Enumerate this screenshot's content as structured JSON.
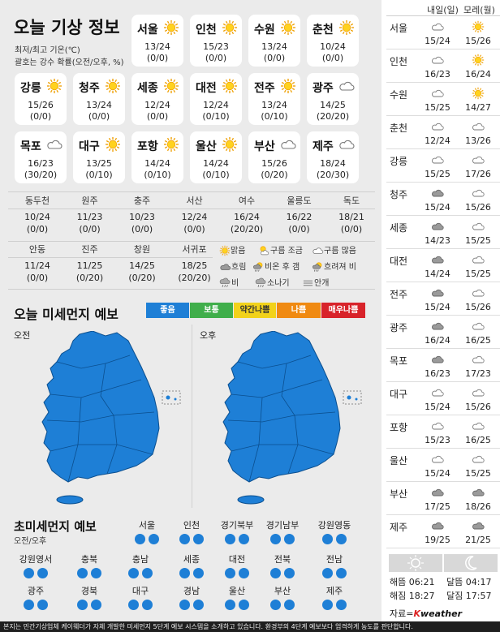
{
  "weather": {
    "title": "오늘 기상 정보",
    "sub1": "최저/최고 기온(℃)",
    "sub2": "괄호는 강수 확률(오전/오후, %)",
    "cards": [
      {
        "name": "서울",
        "icon": "sun-icon",
        "temp": "13/24",
        "prob": "(0/0)"
      },
      {
        "name": "인천",
        "icon": "sun-icon",
        "temp": "15/23",
        "prob": "(0/0)"
      },
      {
        "name": "수원",
        "icon": "sun-icon",
        "temp": "13/24",
        "prob": "(0/0)"
      },
      {
        "name": "춘천",
        "icon": "sun-icon",
        "temp": "10/24",
        "prob": "(0/0)"
      },
      {
        "name": "강릉",
        "icon": "sun-icon",
        "temp": "15/26",
        "prob": "(0/0)"
      },
      {
        "name": "청주",
        "icon": "sun-icon",
        "temp": "13/24",
        "prob": "(0/0)"
      },
      {
        "name": "세종",
        "icon": "sun-icon",
        "temp": "12/24",
        "prob": "(0/0)"
      },
      {
        "name": "대전",
        "icon": "sun-icon",
        "temp": "12/24",
        "prob": "(0/10)"
      },
      {
        "name": "전주",
        "icon": "sun-icon",
        "temp": "13/24",
        "prob": "(0/10)"
      },
      {
        "name": "광주",
        "icon": "cloud-icon",
        "temp": "14/25",
        "prob": "(20/20)"
      },
      {
        "name": "목포",
        "icon": "cloud-icon",
        "temp": "16/23",
        "prob": "(30/20)"
      },
      {
        "name": "대구",
        "icon": "sun-icon",
        "temp": "13/25",
        "prob": "(0/10)"
      },
      {
        "name": "포항",
        "icon": "sun-icon",
        "temp": "14/24",
        "prob": "(0/10)"
      },
      {
        "name": "울산",
        "icon": "sun-icon",
        "temp": "14/24",
        "prob": "(0/10)"
      },
      {
        "name": "부산",
        "icon": "cloud-icon",
        "temp": "15/26",
        "prob": "(0/20)"
      },
      {
        "name": "제주",
        "icon": "cloud-icon",
        "temp": "18/24",
        "prob": "(20/30)"
      }
    ],
    "small_row1": [
      {
        "name": "동두천",
        "temp": "10/24",
        "prob": "(0/0)"
      },
      {
        "name": "원주",
        "temp": "11/23",
        "prob": "(0/0)"
      },
      {
        "name": "충주",
        "temp": "10/23",
        "prob": "(0/0)"
      },
      {
        "name": "서산",
        "temp": "12/24",
        "prob": "(0/0)"
      },
      {
        "name": "여수",
        "temp": "16/24",
        "prob": "(20/20)"
      },
      {
        "name": "울릉도",
        "temp": "16/22",
        "prob": "(0/0)"
      },
      {
        "name": "독도",
        "temp": "18/21",
        "prob": "(0/0)"
      }
    ],
    "small_row2": [
      {
        "name": "안동",
        "temp": "11/24",
        "prob": "(0/0)"
      },
      {
        "name": "진주",
        "temp": "11/25",
        "prob": "(0/20)"
      },
      {
        "name": "창원",
        "temp": "14/25",
        "prob": "(0/20)"
      },
      {
        "name": "서귀포",
        "temp": "18/25",
        "prob": "(20/20)"
      }
    ],
    "legend": {
      "sunny": "맑음",
      "partly": "구름 조금",
      "mostly": "구름 많음",
      "cloudy": "흐림",
      "rain_then_clear": "비온 후 갬",
      "cloudy_then_rain": "흐려져 비",
      "rain": "비",
      "shower": "소나기",
      "fog": "안개"
    }
  },
  "dust": {
    "title": "오늘 미세먼지 예보",
    "scale": [
      {
        "label": "좋음",
        "color": "#1e7fd6"
      },
      {
        "label": "보통",
        "color": "#3fae4a"
      },
      {
        "label": "약간나쁨",
        "color": "#f2d21b"
      },
      {
        "label": "나쁨",
        "color": "#f08a12"
      },
      {
        "label": "매우나쁨",
        "color": "#d8232a"
      }
    ],
    "am": "오전",
    "pm": "오후",
    "map_color": "#1e7fd6"
  },
  "fine": {
    "title": "초미세먼지 예보",
    "sub": "오전/오후",
    "regions": [
      "서울",
      "인천",
      "경기북부",
      "경기남부",
      "강원영동",
      "강원영서",
      "충북",
      "충남",
      "세종",
      "대전",
      "전북",
      "전남",
      "광주",
      "경북",
      "대구",
      "경남",
      "울산",
      "부산",
      "제주"
    ]
  },
  "forecast": {
    "day1": "내일(일)",
    "day2": "모레(월)",
    "rows": [
      {
        "city": "서울",
        "i1": "cloud-icon",
        "t1": "15/24",
        "i2": "sun-icon",
        "t2": "15/26"
      },
      {
        "city": "인천",
        "i1": "cloud-icon",
        "t1": "16/23",
        "i2": "sun-icon",
        "t2": "16/24"
      },
      {
        "city": "수원",
        "i1": "cloud-icon",
        "t1": "15/25",
        "i2": "sun-icon",
        "t2": "14/27"
      },
      {
        "city": "춘천",
        "i1": "cloud-icon",
        "t1": "12/24",
        "i2": "cloud-icon",
        "t2": "13/26"
      },
      {
        "city": "강릉",
        "i1": "cloud-icon",
        "t1": "15/25",
        "i2": "cloud-icon",
        "t2": "17/26"
      },
      {
        "city": "청주",
        "i1": "dark-cloud-icon",
        "t1": "15/24",
        "i2": "cloud-icon",
        "t2": "15/26"
      },
      {
        "city": "세종",
        "i1": "dark-cloud-icon",
        "t1": "14/23",
        "i2": "cloud-icon",
        "t2": "15/25"
      },
      {
        "city": "대전",
        "i1": "dark-cloud-icon",
        "t1": "14/24",
        "i2": "cloud-icon",
        "t2": "15/25"
      },
      {
        "city": "전주",
        "i1": "dark-cloud-icon",
        "t1": "15/24",
        "i2": "cloud-icon",
        "t2": "15/26"
      },
      {
        "city": "광주",
        "i1": "dark-cloud-icon",
        "t1": "16/24",
        "i2": "cloud-icon",
        "t2": "16/25"
      },
      {
        "city": "목포",
        "i1": "dark-cloud-icon",
        "t1": "16/23",
        "i2": "cloud-icon",
        "t2": "17/23"
      },
      {
        "city": "대구",
        "i1": "cloud-icon",
        "t1": "15/24",
        "i2": "cloud-icon",
        "t2": "15/26"
      },
      {
        "city": "포항",
        "i1": "cloud-icon",
        "t1": "15/23",
        "i2": "cloud-icon",
        "t2": "16/25"
      },
      {
        "city": "울산",
        "i1": "cloud-icon",
        "t1": "15/24",
        "i2": "cloud-icon",
        "t2": "15/25"
      },
      {
        "city": "부산",
        "i1": "dark-cloud-icon",
        "t1": "17/25",
        "i2": "dark-cloud-icon",
        "t2": "18/26"
      },
      {
        "city": "제주",
        "i1": "dark-cloud-icon",
        "t1": "19/25",
        "i2": "dark-cloud-icon",
        "t2": "21/25"
      }
    ],
    "sunrise": "해뜸 06:21",
    "sunset": "해짐 18:27",
    "moonrise": "달뜸 04:17",
    "moonset": "달짐 17:57",
    "source_prefix": "자료=",
    "source_brand_k": "K",
    "source_brand_rest": "weather"
  },
  "footer": "본지는 민간기상업체 케이웨더가 자체 개발한 미세먼지 5단계 예보 시스템을 소개하고 있습니다. 환경부의 4단계 예보보다 엄격하게 농도를 판단합니다."
}
